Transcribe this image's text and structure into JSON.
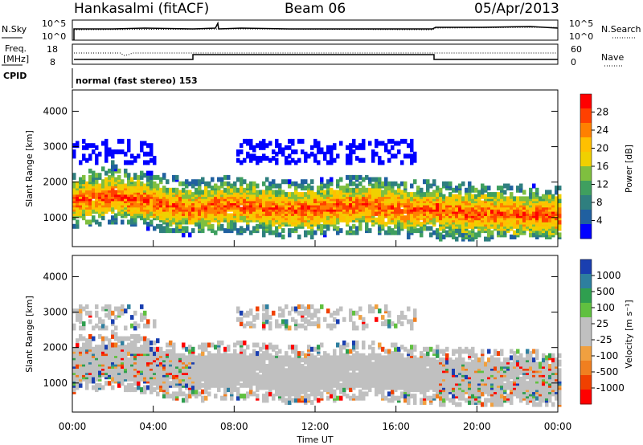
{
  "header": {
    "station": "Hankasalmi (fitACF)",
    "beam": "Beam 06",
    "date": "05/Apr/2013"
  },
  "summary_panels": {
    "nsky_label": "N.Sky",
    "nsearch_label": "N.Search",
    "freq_label_line1": "Freq.",
    "freq_label_line2": "[MHz]",
    "nave_label": "Nave",
    "cpid_label": "CPID",
    "cpid_text": "normal (fast stereo) 153",
    "noise_ticks_left": [
      "10^5",
      "10^0"
    ],
    "noise_ticks_right": [
      "10^5",
      "10^0"
    ],
    "freq_ticks_left": [
      "18",
      "8"
    ],
    "nave_ticks_right": [
      "60",
      "0"
    ]
  },
  "chart_data": [
    {
      "type": "heatmap",
      "panel": "power",
      "ylabel": "Slant Range [km]",
      "xlabel": "",
      "ylim": [
        180,
        4600
      ],
      "yticks": [
        "1000",
        "2000",
        "3000",
        "4000"
      ],
      "xticks": [
        "00:00",
        "04:00",
        "08:00",
        "12:00",
        "16:00",
        "20:00",
        "00:00"
      ],
      "colorbar": {
        "label": "Power [dB]",
        "ticks": [
          "28",
          "24",
          "20",
          "16",
          "12",
          "8",
          "4"
        ],
        "colors": [
          "#ff0000",
          "#ff4000",
          "#ff8000",
          "#ffc000",
          "#f0d000",
          "#7fbf3f",
          "#3f9f5f",
          "#2f7f7f",
          "#2060a0",
          "#0000ff"
        ]
      }
    },
    {
      "type": "heatmap",
      "panel": "velocity",
      "ylabel": "Slant Range [km]",
      "xlabel": "Time UT",
      "ylim": [
        180,
        4600
      ],
      "yticks": [
        "1000",
        "2000",
        "3000",
        "4000"
      ],
      "xticks": [
        "00:00",
        "04:00",
        "08:00",
        "12:00",
        "16:00",
        "20:00",
        "00:00"
      ],
      "colorbar": {
        "label": "Velocity [m s⁻¹]",
        "ticks": [
          "1000",
          "500",
          "100",
          "25",
          "-25",
          "-100",
          "-500",
          "-1000"
        ],
        "colors": [
          "#1a3fb0",
          "#2e7f9f",
          "#2f9f4f",
          "#60c040",
          "#c0c0c0",
          "#c0c0c0",
          "#f0a040",
          "#f07f20",
          "#f04000",
          "#ff0000"
        ]
      }
    }
  ]
}
